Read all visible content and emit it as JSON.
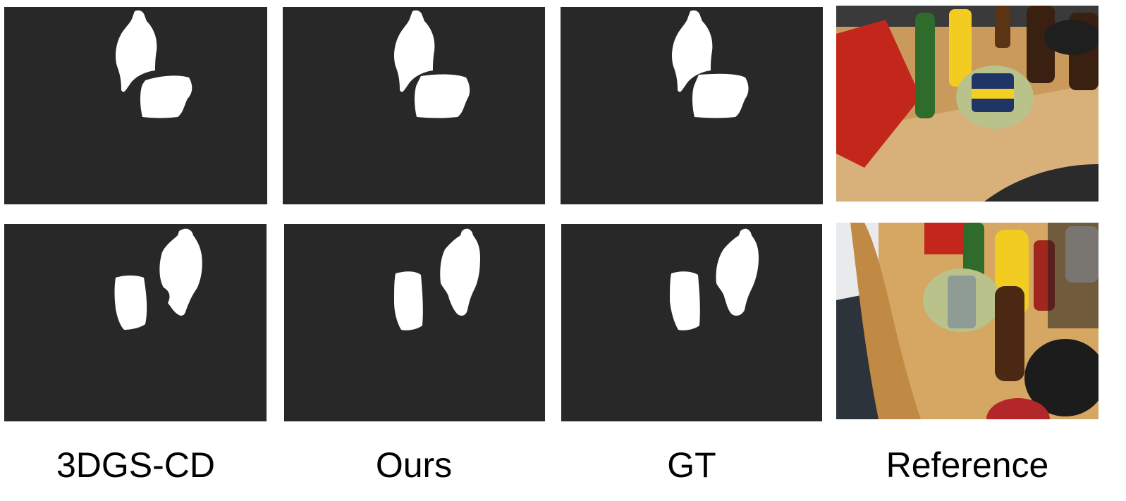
{
  "figure": {
    "columns": [
      {
        "label": "3DGS-CD"
      },
      {
        "label": "Ours"
      },
      {
        "label": "GT"
      },
      {
        "label": "Reference"
      }
    ],
    "colors": {
      "mask_background": "#282828",
      "mask_foreground": "#ffffff"
    }
  }
}
